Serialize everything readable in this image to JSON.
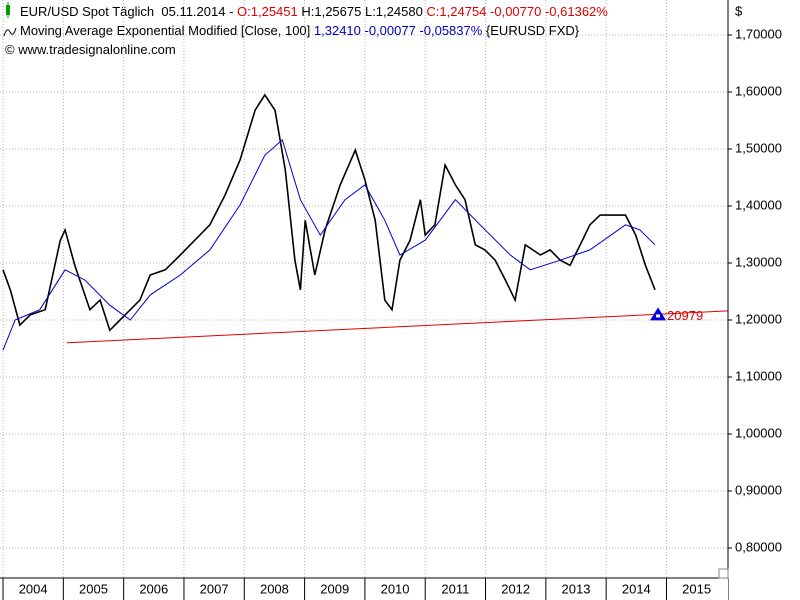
{
  "chart_data": {
    "type": "line",
    "header": [
      [
        {
          "text": "EUR/USD Spot Täglich  05.11.2014 - ",
          "color": "#000000"
        },
        {
          "text": "O:1,25451",
          "color": "#e00000"
        },
        {
          "text": " H:1,25675 L:1,24580 ",
          "color": "#000000"
        },
        {
          "text": "C:1,24754 -0,00770 -0,61362%",
          "color": "#e00000"
        }
      ],
      [
        {
          "text": "Moving Average Exponential Modified [Close, 100] ",
          "color": "#000000"
        },
        {
          "text": "1,32410 -0,00077 -0,05837%",
          "color": "#0000c0"
        },
        {
          "text": " {EURUSD FXD}",
          "color": "#000000"
        }
      ],
      [
        {
          "text": "© www.tradesignalonline.com",
          "color": "#000000"
        }
      ]
    ],
    "y_axis_label": "$",
    "series": [
      {
        "color": "#000000",
        "x": [
          2004.0,
          2004.12,
          2004.28,
          2004.45,
          2004.7,
          2004.95,
          2005.03,
          2005.19,
          2005.44,
          2005.61,
          2005.77,
          2005.94,
          2006.11,
          2006.27,
          2006.44,
          2006.69,
          2006.94,
          2007.18,
          2007.43,
          2007.68,
          2007.93,
          2008.18,
          2008.34,
          2008.51,
          2008.68,
          2008.84,
          2008.93,
          2009.01,
          2009.17,
          2009.34,
          2009.59,
          2009.84,
          2010.0,
          2010.17,
          2010.33,
          2010.45,
          2010.58,
          2010.75,
          2010.92,
          2011.0,
          2011.16,
          2011.33,
          2011.5,
          2011.66,
          2011.83,
          2011.99,
          2012.16,
          2012.33,
          2012.49,
          2012.66,
          2012.91,
          2013.07,
          2013.24,
          2013.4,
          2013.57,
          2013.73,
          2013.9,
          2014.15,
          2014.32,
          2014.49,
          2014.65,
          2014.81
        ],
        "values": [
          1.288,
          1.253,
          1.191,
          1.209,
          1.218,
          1.34,
          1.358,
          1.296,
          1.218,
          1.235,
          1.182,
          1.2,
          1.218,
          1.235,
          1.279,
          1.288,
          1.314,
          1.34,
          1.367,
          1.419,
          1.481,
          1.568,
          1.595,
          1.568,
          1.463,
          1.305,
          1.253,
          1.375,
          1.279,
          1.358,
          1.437,
          1.498,
          1.446,
          1.375,
          1.235,
          1.218,
          1.305,
          1.34,
          1.411,
          1.349,
          1.367,
          1.472,
          1.437,
          1.411,
          1.332,
          1.323,
          1.305,
          1.27,
          1.235,
          1.332,
          1.314,
          1.323,
          1.305,
          1.296,
          1.332,
          1.367,
          1.384,
          1.384,
          1.384,
          1.349,
          1.296,
          1.253
        ]
      },
      {
        "color": "#0000c8",
        "x": [
          2004.0,
          2004.2,
          2004.61,
          2005.03,
          2005.36,
          2005.77,
          2006.11,
          2006.44,
          2006.94,
          2007.43,
          2007.93,
          2008.34,
          2008.63,
          2008.93,
          2009.26,
          2009.67,
          2010.0,
          2010.33,
          2010.58,
          2011.0,
          2011.5,
          2011.91,
          2012.41,
          2012.74,
          2013.24,
          2013.73,
          2014.32,
          2014.56,
          2014.81
        ],
        "values": [
          1.147,
          1.2,
          1.218,
          1.288,
          1.27,
          1.226,
          1.2,
          1.244,
          1.279,
          1.323,
          1.402,
          1.489,
          1.516,
          1.411,
          1.349,
          1.411,
          1.437,
          1.375,
          1.314,
          1.34,
          1.411,
          1.367,
          1.314,
          1.288,
          1.305,
          1.323,
          1.367,
          1.358,
          1.332
        ]
      },
      {
        "color": "#e00000",
        "x": [
          2005.06,
          2016.02
        ],
        "values": [
          1.16,
          1.216
        ]
      }
    ],
    "annotation": {
      "text": "20979",
      "x": 2014.86,
      "y": 1.20979,
      "color": "#0000e0"
    },
    "xlim": [
      2003.95,
      2016.02
    ],
    "ylim": [
      0.7474,
      1.7614
    ],
    "xticks": [
      2004,
      2005,
      2006,
      2007,
      2008,
      2009,
      2010,
      2011,
      2012,
      2013,
      2014,
      2015
    ],
    "yticks": [
      {
        "value": 0.8,
        "label": "0,80000"
      },
      {
        "value": 0.9,
        "label": "0,90000"
      },
      {
        "value": 1.0,
        "label": "1,00000"
      },
      {
        "value": 1.1,
        "label": "1,10000"
      },
      {
        "value": 1.2,
        "label": "1,20000"
      },
      {
        "value": 1.3,
        "label": "1,30000"
      },
      {
        "value": 1.4,
        "label": "1,40000"
      },
      {
        "value": 1.5,
        "label": "1,50000"
      },
      {
        "value": 1.6,
        "label": "1,60000"
      },
      {
        "value": 1.7,
        "label": "1,70000"
      }
    ],
    "grid": true
  }
}
